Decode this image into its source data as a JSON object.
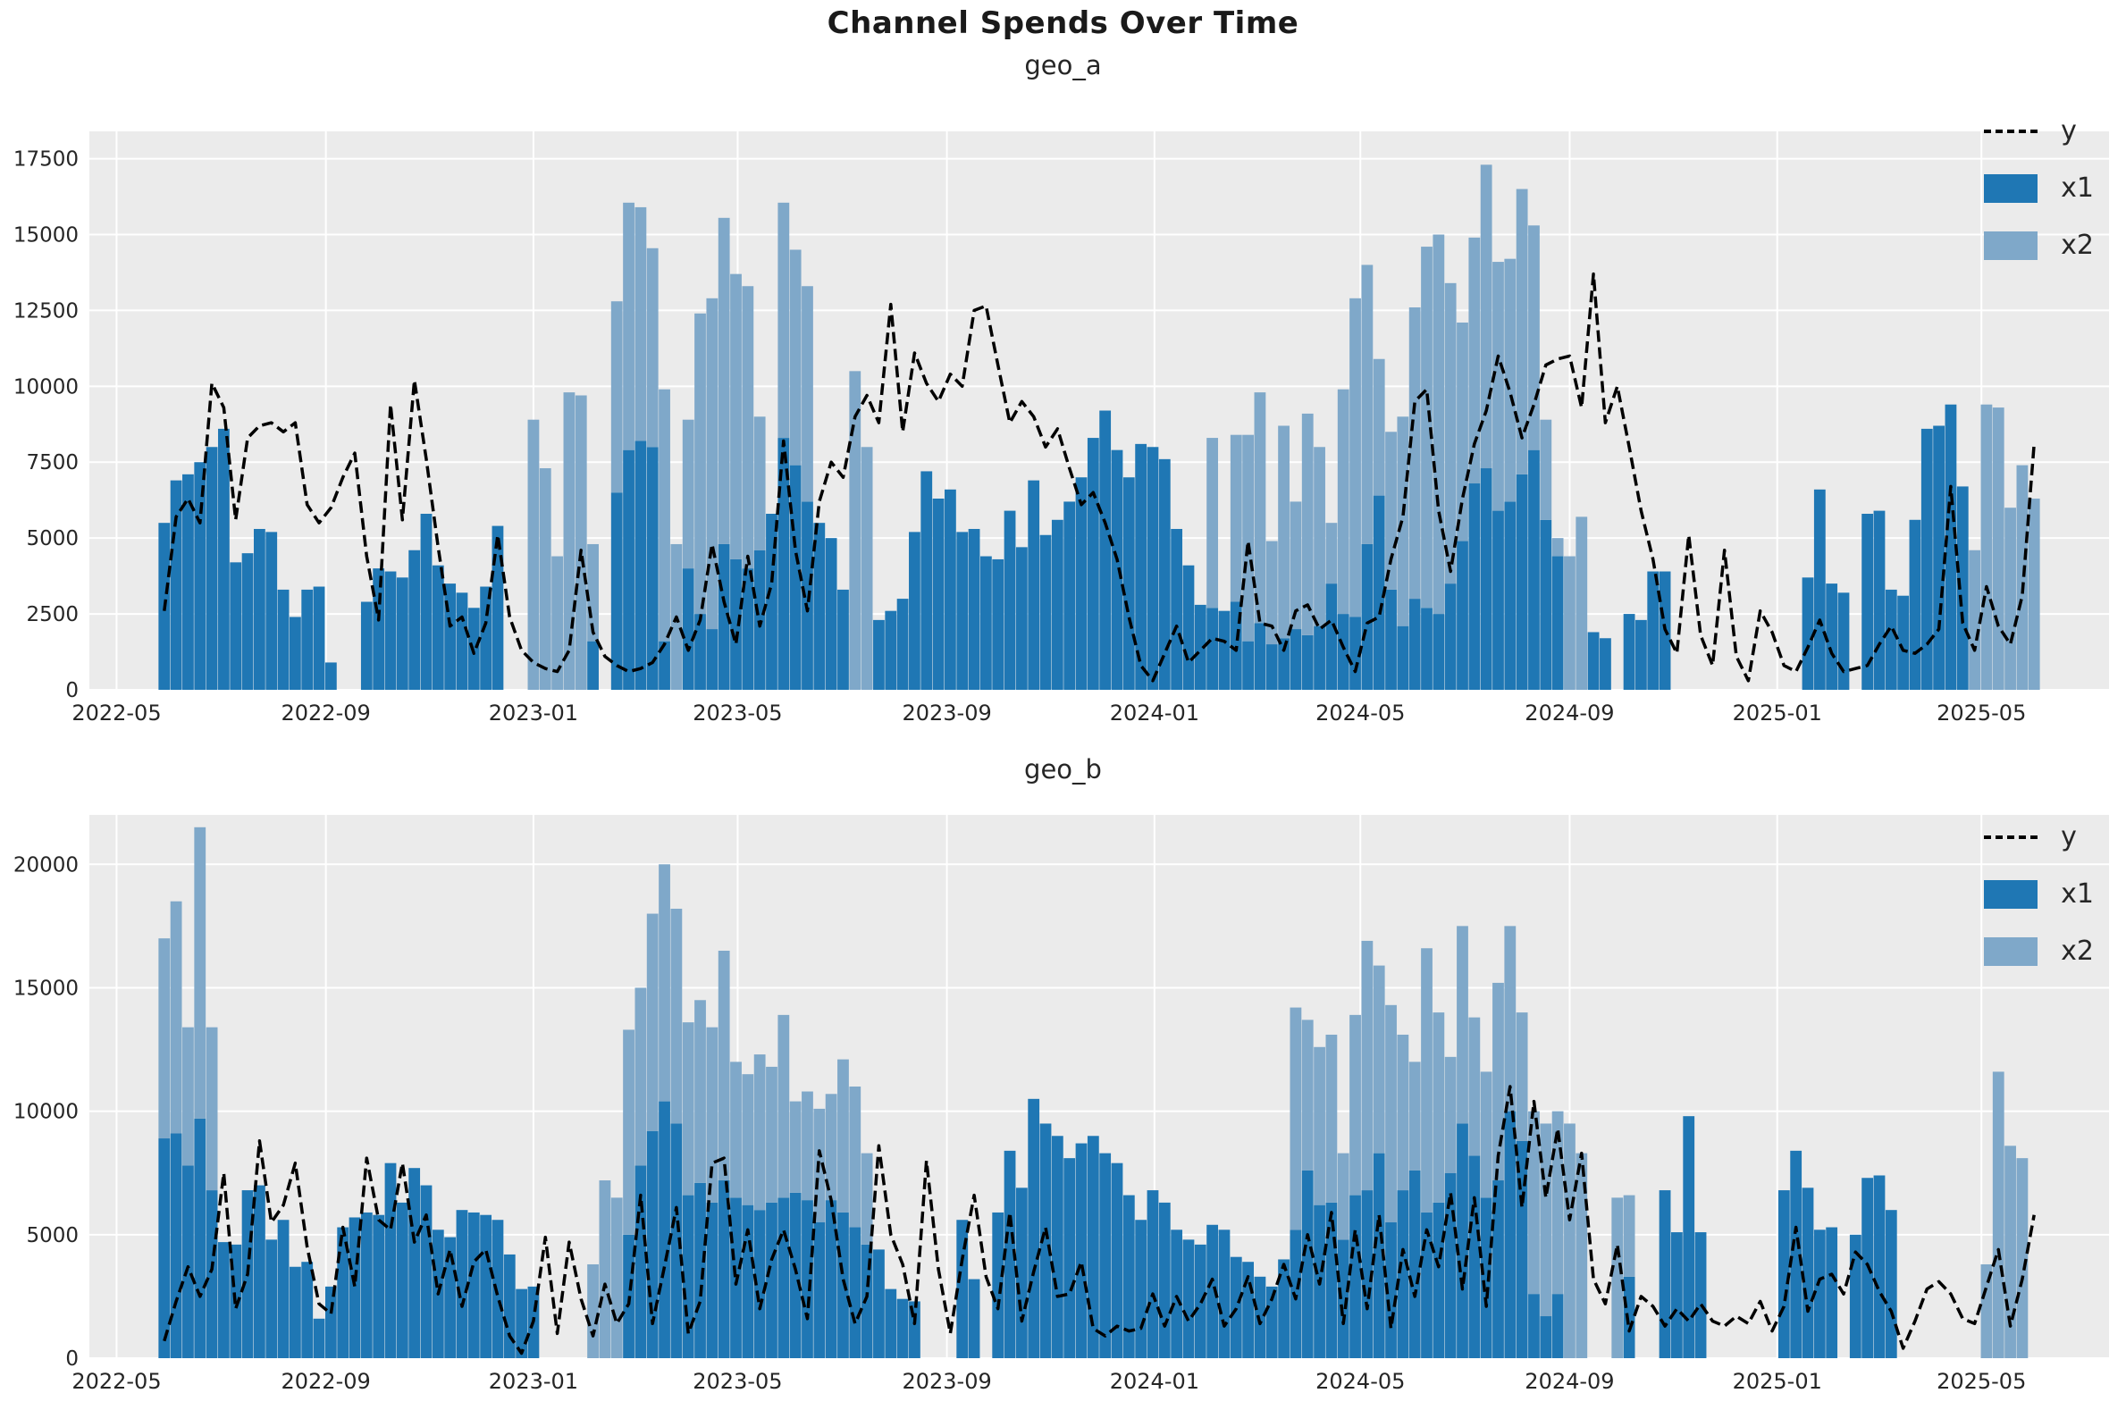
{
  "title": "Channel Spends Over Time",
  "colors": {
    "x1": "#1f77b4",
    "x2": "#7fa8c9",
    "line": "#000000",
    "plot_bg": "#ebebeb",
    "grid": "#ffffff",
    "tick_label": "#262626",
    "title": "#1a1a1a"
  },
  "legend": {
    "y_label": "y",
    "x1_label": "x1",
    "x2_label": "x2"
  },
  "chart_data": [
    {
      "type": "bar+line",
      "name": "geo_a",
      "title": "geo_a",
      "bar_mode": "stacked",
      "start_date": "2022-05-29",
      "step_days": 7,
      "x_domain": [
        "2022-04-15",
        "2025-07-15"
      ],
      "ylim": [
        0,
        18400
      ],
      "y_ticks": [
        0,
        2500,
        5000,
        7500,
        10000,
        12500,
        15000,
        17500
      ],
      "x_ticks": [
        {
          "label": "2022-05",
          "date": "2022-05-01"
        },
        {
          "label": "2022-09",
          "date": "2022-09-01"
        },
        {
          "label": "2023-01",
          "date": "2023-01-01"
        },
        {
          "label": "2023-05",
          "date": "2023-05-01"
        },
        {
          "label": "2023-09",
          "date": "2023-09-01"
        },
        {
          "label": "2024-01",
          "date": "2024-01-01"
        },
        {
          "label": "2024-05",
          "date": "2024-05-01"
        },
        {
          "label": "2024-09",
          "date": "2024-09-01"
        },
        {
          "label": "2025-01",
          "date": "2025-01-01"
        },
        {
          "label": "2025-05",
          "date": "2025-05-01"
        }
      ],
      "x1": [
        5500,
        6900,
        7100,
        7500,
        8000,
        8600,
        4200,
        4500,
        5300,
        5200,
        3300,
        2400,
        3300,
        3400,
        900,
        0,
        0,
        2900,
        4000,
        3900,
        3700,
        4600,
        5800,
        4100,
        3500,
        3200,
        2700,
        3400,
        5400,
        0,
        0,
        0,
        0,
        0,
        0,
        0,
        1600,
        0,
        6500,
        7900,
        8200,
        8000,
        1600,
        0,
        4000,
        2500,
        2000,
        4800,
        4300,
        4000,
        4600,
        5800,
        8300,
        7400,
        6200,
        5500,
        5000,
        3300,
        0,
        0,
        2300,
        2600,
        3000,
        5200,
        7200,
        6300,
        6600,
        5200,
        5300,
        4400,
        4300,
        5900,
        4700,
        6900,
        5100,
        5600,
        6200,
        7000,
        8300,
        9200,
        7900,
        7000,
        8100,
        8000,
        7600,
        5300,
        4100,
        2800,
        2700,
        2600,
        2900,
        1600,
        2200,
        1500,
        1700,
        2000,
        1800,
        2100,
        3500,
        2500,
        2400,
        4800,
        6400,
        3300,
        2100,
        3000,
        2700,
        2500,
        3500,
        4900,
        6800,
        7300,
        5900,
        6200,
        7100,
        7900,
        5600,
        4400,
        0,
        0,
        1900,
        1700,
        0,
        2500,
        2300,
        3900,
        3900,
        0,
        0,
        0,
        0,
        0,
        0,
        0,
        0,
        0,
        0,
        0,
        3700,
        6600,
        3500,
        3200,
        0,
        5800,
        5900,
        3300,
        3100,
        5600,
        8600,
        8700,
        9400,
        6700,
        0,
        0,
        0,
        0,
        0,
        0
      ],
      "x2": [
        0,
        0,
        0,
        0,
        0,
        0,
        0,
        0,
        0,
        0,
        0,
        0,
        0,
        0,
        0,
        0,
        0,
        0,
        0,
        0,
        0,
        0,
        0,
        0,
        0,
        0,
        0,
        0,
        0,
        0,
        0,
        8900,
        7300,
        4400,
        9800,
        9700,
        3200,
        0,
        6300,
        8150,
        7700,
        6550,
        8300,
        4800,
        4900,
        9900,
        10900,
        10750,
        9400,
        9300,
        4400,
        0,
        7750,
        7100,
        7100,
        0,
        0,
        0,
        10500,
        8000,
        0,
        0,
        0,
        0,
        0,
        0,
        0,
        0,
        0,
        0,
        0,
        0,
        0,
        0,
        0,
        0,
        0,
        0,
        0,
        0,
        0,
        0,
        0,
        0,
        0,
        0,
        0,
        0,
        5600,
        0,
        5500,
        6800,
        7600,
        3400,
        7000,
        4200,
        7300,
        5900,
        2000,
        7400,
        10500,
        9200,
        4500,
        5200,
        6900,
        9600,
        11900,
        12500,
        9900,
        7200,
        8100,
        10000,
        8200,
        8000,
        9400,
        7400,
        3300,
        600,
        4400,
        5700,
        0,
        0,
        0,
        0,
        0,
        0,
        0,
        0,
        0,
        0,
        0,
        0,
        0,
        0,
        0,
        0,
        0,
        0,
        0,
        0,
        0,
        0,
        0,
        0,
        0,
        0,
        0,
        0,
        0,
        0,
        0,
        0,
        4600,
        9400,
        9300,
        6000,
        7400,
        6300
      ],
      "y": [
        2600,
        5700,
        6300,
        5500,
        10100,
        9300,
        5600,
        8300,
        8700,
        8800,
        8500,
        8800,
        6100,
        5500,
        6000,
        7000,
        7800,
        4400,
        2300,
        9400,
        5600,
        10200,
        7600,
        4700,
        2100,
        2400,
        1200,
        2200,
        5100,
        2400,
        1300,
        900,
        700,
        600,
        1300,
        4600,
        1900,
        1100,
        800,
        600,
        700,
        900,
        1500,
        2400,
        1300,
        2300,
        4800,
        2900,
        1500,
        4400,
        2100,
        3500,
        8200,
        4600,
        2600,
        6200,
        7500,
        7000,
        9000,
        9700,
        8800,
        12700,
        8500,
        11100,
        10100,
        9500,
        10400,
        10000,
        12500,
        12650,
        10700,
        8800,
        9500,
        9000,
        8000,
        8600,
        7300,
        6100,
        6500,
        5500,
        4300,
        2400,
        800,
        300,
        1200,
        2100,
        900,
        1300,
        1700,
        1600,
        1300,
        4900,
        2200,
        2100,
        1300,
        2600,
        2800,
        2000,
        2300,
        1400,
        600,
        2200,
        2400,
        4300,
        5700,
        9500,
        9900,
        5900,
        3900,
        6300,
        8100,
        9200,
        11000,
        9800,
        8300,
        9400,
        10700,
        10900,
        11000,
        9300,
        13700,
        8800,
        10000,
        8000,
        5900,
        4300,
        2000,
        1200,
        5100,
        1800,
        800,
        4600,
        1100,
        300,
        2600,
        1900,
        800,
        600,
        1400,
        2300,
        1200,
        600,
        700,
        800,
        1500,
        2100,
        1300,
        1200,
        1500,
        2000,
        6700,
        2200,
        1300,
        3400,
        2100,
        1500,
        3100,
        8100
      ]
    },
    {
      "type": "bar+line",
      "name": "geo_b",
      "title": "geo_b",
      "bar_mode": "stacked",
      "start_date": "2022-05-29",
      "step_days": 7,
      "x_domain": [
        "2022-04-15",
        "2025-07-15"
      ],
      "ylim": [
        0,
        22000
      ],
      "y_ticks": [
        0,
        5000,
        10000,
        15000,
        20000
      ],
      "x_ticks": [
        {
          "label": "2022-05",
          "date": "2022-05-01"
        },
        {
          "label": "2022-09",
          "date": "2022-09-01"
        },
        {
          "label": "2023-01",
          "date": "2023-01-01"
        },
        {
          "label": "2023-05",
          "date": "2023-05-01"
        },
        {
          "label": "2023-09",
          "date": "2023-09-01"
        },
        {
          "label": "2024-01",
          "date": "2024-01-01"
        },
        {
          "label": "2024-05",
          "date": "2024-05-01"
        },
        {
          "label": "2024-09",
          "date": "2024-09-01"
        },
        {
          "label": "2025-01",
          "date": "2025-01-01"
        },
        {
          "label": "2025-05",
          "date": "2025-05-01"
        }
      ],
      "x1": [
        8900,
        9100,
        7800,
        9700,
        6800,
        4700,
        4600,
        6800,
        7000,
        4800,
        5600,
        3700,
        3900,
        1600,
        2900,
        5300,
        5700,
        5900,
        5800,
        7900,
        6300,
        7700,
        7000,
        5200,
        4900,
        6000,
        5900,
        5800,
        5600,
        4200,
        2800,
        2900,
        0,
        0,
        0,
        0,
        0,
        0,
        0,
        5000,
        7800,
        9200,
        10400,
        9500,
        6600,
        7100,
        6300,
        7200,
        6500,
        6200,
        6000,
        6300,
        6500,
        6700,
        6400,
        5500,
        6400,
        5900,
        5300,
        4600,
        4400,
        2800,
        2400,
        2300,
        0,
        0,
        0,
        5600,
        3200,
        0,
        5900,
        8400,
        6900,
        10500,
        9500,
        9000,
        8100,
        8700,
        9000,
        8300,
        7900,
        6600,
        5600,
        6800,
        6300,
        5200,
        4800,
        4600,
        5400,
        5200,
        4100,
        3900,
        3300,
        2900,
        4000,
        5200,
        7600,
        6200,
        6300,
        4800,
        6600,
        6800,
        8300,
        5500,
        6800,
        7600,
        5900,
        6300,
        7500,
        9500,
        8200,
        6500,
        7200,
        10000,
        8800,
        2600,
        1700,
        2600,
        0,
        0,
        0,
        0,
        0,
        3300,
        0,
        0,
        6800,
        5100,
        9800,
        5100,
        0,
        0,
        0,
        0,
        0,
        0,
        6800,
        8400,
        6900,
        5200,
        5300,
        0,
        5000,
        7300,
        7400,
        6000,
        0,
        0,
        0,
        0,
        0,
        0,
        0,
        0,
        0,
        0,
        0,
        0
      ],
      "x2": [
        8100,
        9400,
        5600,
        11800,
        6600,
        0,
        0,
        0,
        0,
        0,
        0,
        0,
        0,
        0,
        0,
        0,
        0,
        0,
        0,
        0,
        0,
        0,
        0,
        0,
        0,
        0,
        0,
        0,
        0,
        0,
        0,
        0,
        0,
        0,
        0,
        0,
        3800,
        7200,
        6500,
        8300,
        7200,
        8800,
        9600,
        8700,
        7000,
        7400,
        7100,
        9300,
        5500,
        5300,
        6300,
        5500,
        7400,
        3700,
        4400,
        4600,
        4300,
        6200,
        5700,
        3700,
        0,
        0,
        0,
        0,
        0,
        0,
        0,
        0,
        0,
        0,
        0,
        0,
        0,
        0,
        0,
        0,
        0,
        0,
        0,
        0,
        0,
        0,
        0,
        0,
        0,
        0,
        0,
        0,
        0,
        0,
        0,
        0,
        0,
        0,
        0,
        9000,
        6100,
        6400,
        6800,
        3500,
        7300,
        10100,
        7600,
        8800,
        6300,
        4400,
        10700,
        7700,
        4700,
        8000,
        5600,
        5100,
        8000,
        7500,
        5200,
        7400,
        7800,
        7400,
        9500,
        8300,
        0,
        0,
        6500,
        3300,
        0,
        0,
        0,
        0,
        0,
        0,
        0,
        0,
        0,
        0,
        0,
        0,
        0,
        0,
        0,
        0,
        0,
        0,
        0,
        0,
        0,
        0,
        0,
        0,
        0,
        0,
        0,
        0,
        0,
        3800,
        11600,
        8600,
        8100,
        0
      ],
      "y": [
        700,
        2300,
        3700,
        2500,
        3600,
        7500,
        2000,
        3400,
        8800,
        5500,
        6200,
        7900,
        4500,
        2200,
        1800,
        5300,
        2900,
        8100,
        5600,
        5200,
        7900,
        4700,
        5800,
        2600,
        4400,
        2100,
        3900,
        4400,
        2500,
        900,
        200,
        1500,
        4900,
        1000,
        4700,
        2400,
        900,
        3000,
        1400,
        2200,
        6600,
        1400,
        3700,
        6100,
        1000,
        2300,
        7900,
        8100,
        3000,
        5200,
        2000,
        4000,
        5200,
        3600,
        1600,
        8400,
        6400,
        3200,
        1400,
        2500,
        8600,
        5000,
        3800,
        1400,
        8000,
        3600,
        1000,
        4000,
        6600,
        3300,
        2000,
        5900,
        1500,
        3500,
        5300,
        2500,
        2600,
        3900,
        1200,
        900,
        1300,
        1100,
        1200,
        2600,
        1300,
        2500,
        1500,
        2200,
        3200,
        1300,
        2000,
        3300,
        1400,
        2400,
        3800,
        2400,
        5000,
        3000,
        5900,
        1400,
        5200,
        2000,
        5800,
        1200,
        4400,
        2500,
        5200,
        3700,
        6700,
        2800,
        6500,
        2100,
        8200,
        11000,
        6100,
        10400,
        6500,
        9300,
        5600,
        8300,
        3200,
        2200,
        4600,
        1100,
        2500,
        2100,
        1300,
        2000,
        1500,
        2200,
        1500,
        1300,
        1700,
        1400,
        2300,
        1100,
        2100,
        5300,
        1900,
        3200,
        3400,
        2600,
        4300,
        3800,
        2700,
        1900,
        400,
        1500,
        2800,
        3100,
        2600,
        1600,
        1400,
        2900,
        4400,
        1300,
        3200,
        5800
      ]
    }
  ],
  "layout_note": "weekly data; bars stacked x1 (dark) below x2 (light); dashed line is y"
}
